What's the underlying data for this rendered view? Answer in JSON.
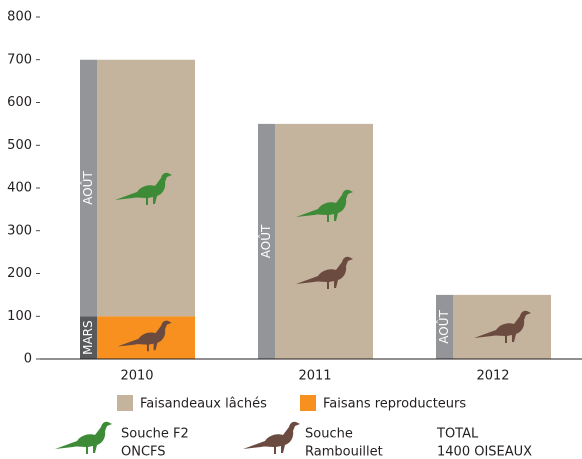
{
  "chart_data": {
    "type": "stacked-bar",
    "categories": [
      "2010",
      "2011",
      "2012"
    ],
    "series": [
      {
        "name": "Faisans reproducteurs",
        "color": "#f7901e",
        "strip_label": "MARS",
        "strip_color": "#58595b",
        "values": [
          100,
          0,
          0
        ]
      },
      {
        "name": "Faisandeaux lâchés",
        "color": "#c4b39d",
        "strip_label": "AOÛT",
        "strip_color": "#939598",
        "values": [
          600,
          550,
          150
        ]
      }
    ],
    "ylim": [
      0,
      800
    ],
    "yticks": [
      0,
      100,
      200,
      300,
      400,
      500,
      600,
      700,
      800
    ],
    "strains": [
      {
        "lines": [
          "Souche F2",
          "ONCFS"
        ],
        "color": "#3d8b37"
      },
      {
        "lines": [
          "Souche",
          "Rambouillet"
        ],
        "color": "#6b4a3f"
      }
    ],
    "total": [
      "TOTAL",
      "1400 OISEAUX"
    ]
  }
}
